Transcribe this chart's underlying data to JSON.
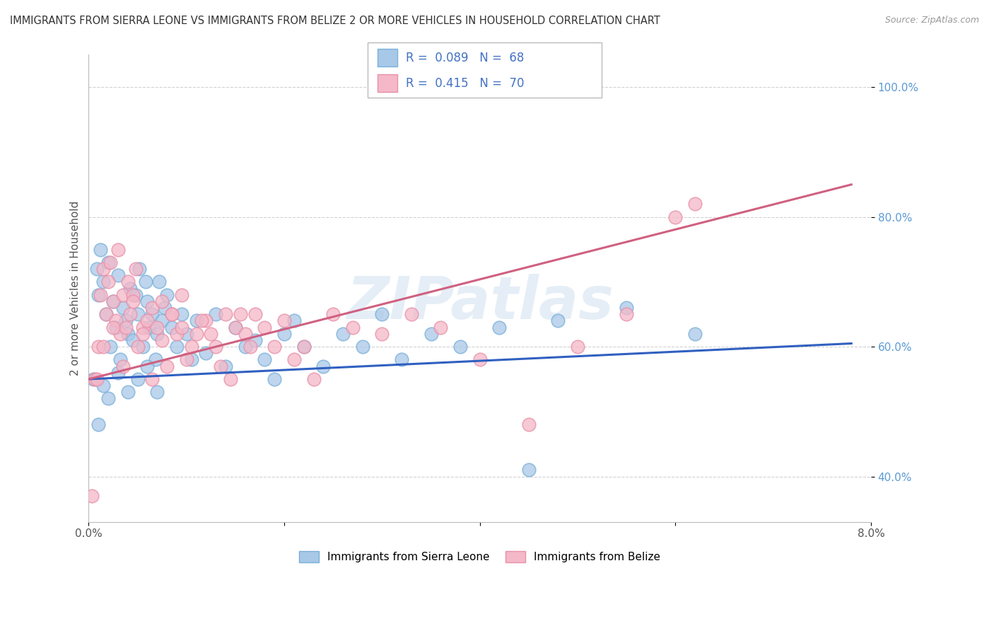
{
  "title": "IMMIGRANTS FROM SIERRA LEONE VS IMMIGRANTS FROM BELIZE 2 OR MORE VEHICLES IN HOUSEHOLD CORRELATION CHART",
  "source": "Source: ZipAtlas.com",
  "ylabel": "2 or more Vehicles in Household",
  "xlim": [
    0.0,
    8.0
  ],
  "ylim": [
    33.0,
    105.0
  ],
  "xticks": [
    0.0,
    2.0,
    4.0,
    6.0,
    8.0
  ],
  "xticklabels": [
    "0.0%",
    "",
    "",
    "",
    "8.0%"
  ],
  "ytick_positions": [
    40.0,
    60.0,
    80.0,
    100.0
  ],
  "ytick_labels": [
    "40.0%",
    "60.0%",
    "80.0%",
    "100.0%"
  ],
  "sierra_leone_color": "#a8c8e8",
  "belize_color": "#f4b8c8",
  "sierra_leone_edge": "#7ab0d8",
  "belize_edge": "#e890a8",
  "sierra_leone_line_color": "#3060c0",
  "belize_line_color": "#d06080",
  "background_color": "#ffffff",
  "grid_color": "#cccccc",
  "R_sierra": 0.089,
  "N_sierra": 68,
  "R_belize": 0.415,
  "N_belize": 70,
  "title_color": "#333333",
  "source_color": "#999999",
  "ylabel_color": "#555555",
  "ytick_color": "#5b9bd5",
  "xtick_color": "#555555",
  "legend_text_color": "#4472c4",
  "watermark_text": "ZIPatlas",
  "sl_x": [
    0.05,
    0.08,
    0.1,
    0.12,
    0.15,
    0.18,
    0.2,
    0.22,
    0.25,
    0.28,
    0.3,
    0.32,
    0.35,
    0.38,
    0.4,
    0.42,
    0.45,
    0.48,
    0.5,
    0.52,
    0.55,
    0.58,
    0.6,
    0.62,
    0.65,
    0.68,
    0.7,
    0.72,
    0.75,
    0.78,
    0.8,
    0.85,
    0.9,
    0.95,
    1.0,
    1.05,
    1.1,
    1.2,
    1.3,
    1.4,
    1.5,
    1.6,
    1.7,
    1.8,
    1.9,
    2.0,
    2.1,
    2.2,
    2.4,
    2.6,
    2.8,
    3.0,
    3.2,
    3.5,
    3.8,
    4.2,
    4.5,
    4.8,
    5.5,
    6.2,
    0.1,
    0.15,
    0.2,
    0.3,
    0.4,
    0.5,
    0.6,
    0.7
  ],
  "sl_y": [
    55,
    72,
    68,
    75,
    70,
    65,
    73,
    60,
    67,
    63,
    71,
    58,
    66,
    64,
    62,
    69,
    61,
    68,
    65,
    72,
    60,
    70,
    67,
    63,
    65,
    58,
    62,
    70,
    64,
    66,
    68,
    63,
    60,
    65,
    62,
    58,
    64,
    59,
    65,
    57,
    63,
    60,
    61,
    58,
    55,
    62,
    64,
    60,
    57,
    62,
    60,
    65,
    58,
    62,
    60,
    63,
    41,
    64,
    66,
    62,
    48,
    54,
    52,
    56,
    53,
    55,
    57,
    53
  ],
  "bz_x": [
    0.03,
    0.06,
    0.1,
    0.12,
    0.15,
    0.18,
    0.2,
    0.22,
    0.25,
    0.28,
    0.3,
    0.32,
    0.35,
    0.38,
    0.4,
    0.42,
    0.45,
    0.48,
    0.5,
    0.55,
    0.6,
    0.65,
    0.7,
    0.75,
    0.8,
    0.85,
    0.9,
    0.95,
    1.0,
    1.1,
    1.2,
    1.3,
    1.4,
    1.5,
    1.6,
    1.7,
    1.8,
    1.9,
    2.0,
    2.1,
    2.2,
    2.3,
    2.5,
    2.7,
    3.0,
    3.3,
    3.6,
    4.0,
    4.5,
    5.0,
    5.5,
    6.0,
    6.2,
    0.08,
    0.15,
    0.25,
    0.35,
    0.45,
    0.55,
    0.65,
    0.75,
    0.85,
    0.95,
    1.05,
    1.15,
    1.25,
    1.35,
    1.45,
    1.55,
    1.65
  ],
  "bz_y": [
    37,
    55,
    60,
    68,
    72,
    65,
    70,
    73,
    67,
    64,
    75,
    62,
    68,
    63,
    70,
    65,
    68,
    72,
    60,
    63,
    64,
    66,
    63,
    61,
    57,
    65,
    62,
    68,
    58,
    62,
    64,
    60,
    65,
    63,
    62,
    65,
    63,
    60,
    64,
    58,
    60,
    55,
    65,
    63,
    62,
    65,
    63,
    58,
    48,
    60,
    65,
    80,
    82,
    55,
    60,
    63,
    57,
    67,
    62,
    55,
    67,
    65,
    63,
    60,
    64,
    62,
    57,
    55,
    65,
    60
  ]
}
